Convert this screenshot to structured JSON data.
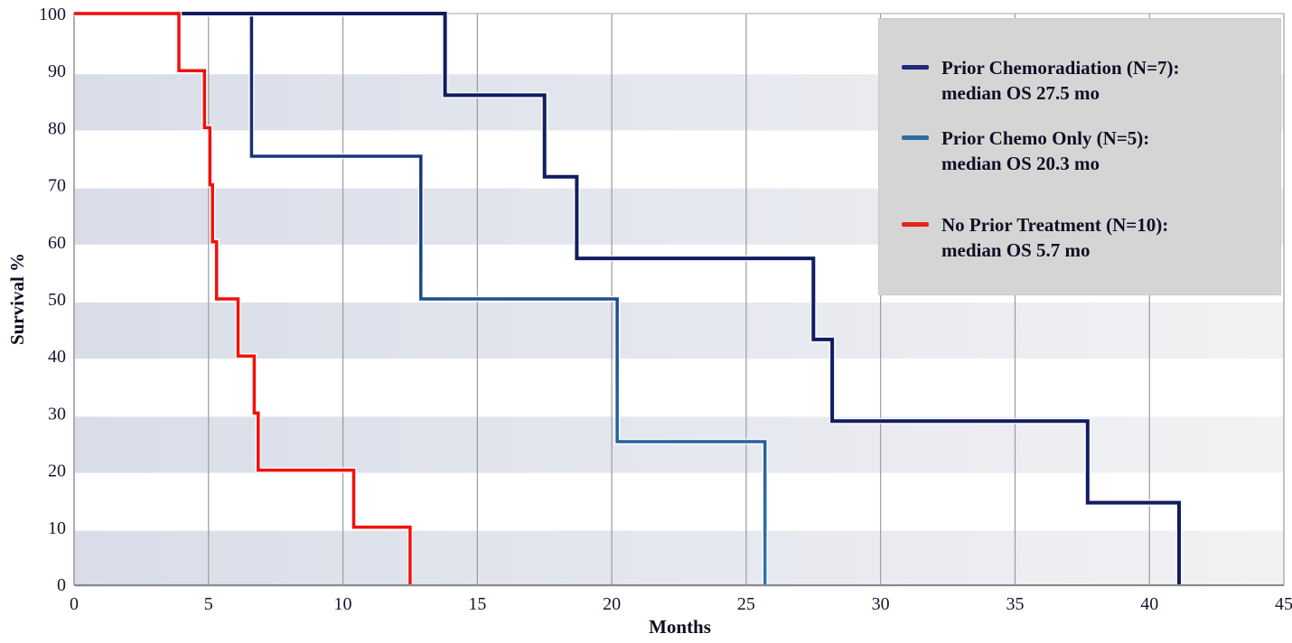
{
  "chart_data": {
    "type": "line",
    "subtype": "kaplan-meier-step",
    "title": "",
    "xlabel": "Months",
    "ylabel": "Survival %",
    "xlim": [
      0,
      45
    ],
    "ylim": [
      0,
      100
    ],
    "x_ticks": [
      0,
      5,
      10,
      15,
      20,
      25,
      30,
      35,
      40,
      45
    ],
    "y_ticks": [
      0,
      10,
      20,
      30,
      40,
      50,
      60,
      70,
      80,
      90,
      100
    ],
    "grid": "vertical-only",
    "gridline_color": "#9b9b9b",
    "axis_line_color": "#8a8a8a",
    "tick_text_color": "#16162c",
    "plot_bands": {
      "ranges": [
        [
          80,
          90
        ],
        [
          60,
          70
        ],
        [
          40,
          50
        ],
        [
          20,
          30
        ],
        [
          0,
          10
        ]
      ],
      "color_left": "#d8dde9",
      "color_right": "#f2f2f4"
    },
    "series": [
      {
        "name": "Prior Chemoradiation (N=7): median OS 27.5 mo",
        "color": "#111d60",
        "width": 4,
        "points": [
          [
            0,
            100
          ],
          [
            13.8,
            100
          ],
          [
            13.8,
            85.7
          ],
          [
            17.5,
            85.7
          ],
          [
            17.5,
            71.4
          ],
          [
            18.7,
            71.4
          ],
          [
            18.7,
            57.1
          ],
          [
            27.5,
            57.1
          ],
          [
            27.5,
            42.9
          ],
          [
            28.2,
            42.9
          ],
          [
            28.2,
            28.6
          ],
          [
            37.7,
            28.6
          ],
          [
            37.7,
            14.3
          ],
          [
            41.1,
            14.3
          ],
          [
            41.1,
            0
          ]
        ]
      },
      {
        "name": "Prior Chemo Only (N=5): median OS 20.3 mo",
        "color": "#2e75b6",
        "color_top": "#15226b",
        "width": 3.5,
        "points": [
          [
            0,
            100
          ],
          [
            6.6,
            100
          ],
          [
            6.6,
            75
          ],
          [
            12.9,
            75
          ],
          [
            12.9,
            50
          ],
          [
            20.2,
            50
          ],
          [
            20.2,
            25
          ],
          [
            25.7,
            25
          ],
          [
            25.7,
            0
          ]
        ]
      },
      {
        "name": "No Prior Treatment (N=10): median OS 5.7 mo",
        "color": "#f3100b",
        "width": 3.5,
        "points": [
          [
            0,
            100
          ],
          [
            3.9,
            100
          ],
          [
            3.9,
            90
          ],
          [
            4.85,
            90
          ],
          [
            4.85,
            80
          ],
          [
            5.05,
            80
          ],
          [
            5.05,
            70
          ],
          [
            5.15,
            70
          ],
          [
            5.15,
            60
          ],
          [
            5.3,
            60
          ],
          [
            5.3,
            50
          ],
          [
            6.1,
            50
          ],
          [
            6.1,
            40
          ],
          [
            6.7,
            40
          ],
          [
            6.7,
            30
          ],
          [
            6.85,
            30
          ],
          [
            6.85,
            20
          ],
          [
            10.4,
            20
          ],
          [
            10.4,
            10
          ],
          [
            12.5,
            10
          ],
          [
            12.5,
            0
          ]
        ]
      }
    ],
    "legend": {
      "position": "top-right",
      "background": "#d5d5d5",
      "entries": [
        {
          "label": "Prior Chemoradiation (N=7):",
          "sublabel": "median OS 27.5 mo",
          "swatch_color": "#222a7a"
        },
        {
          "label": "Prior Chemo Only (N=5):",
          "sublabel": "median OS 20.3 mo",
          "swatch_color": "#2e6f9e"
        },
        {
          "label": "No Prior Treatment (N=10):",
          "sublabel": "median OS 5.7 mo",
          "swatch_color": "#e8231a"
        }
      ]
    }
  }
}
